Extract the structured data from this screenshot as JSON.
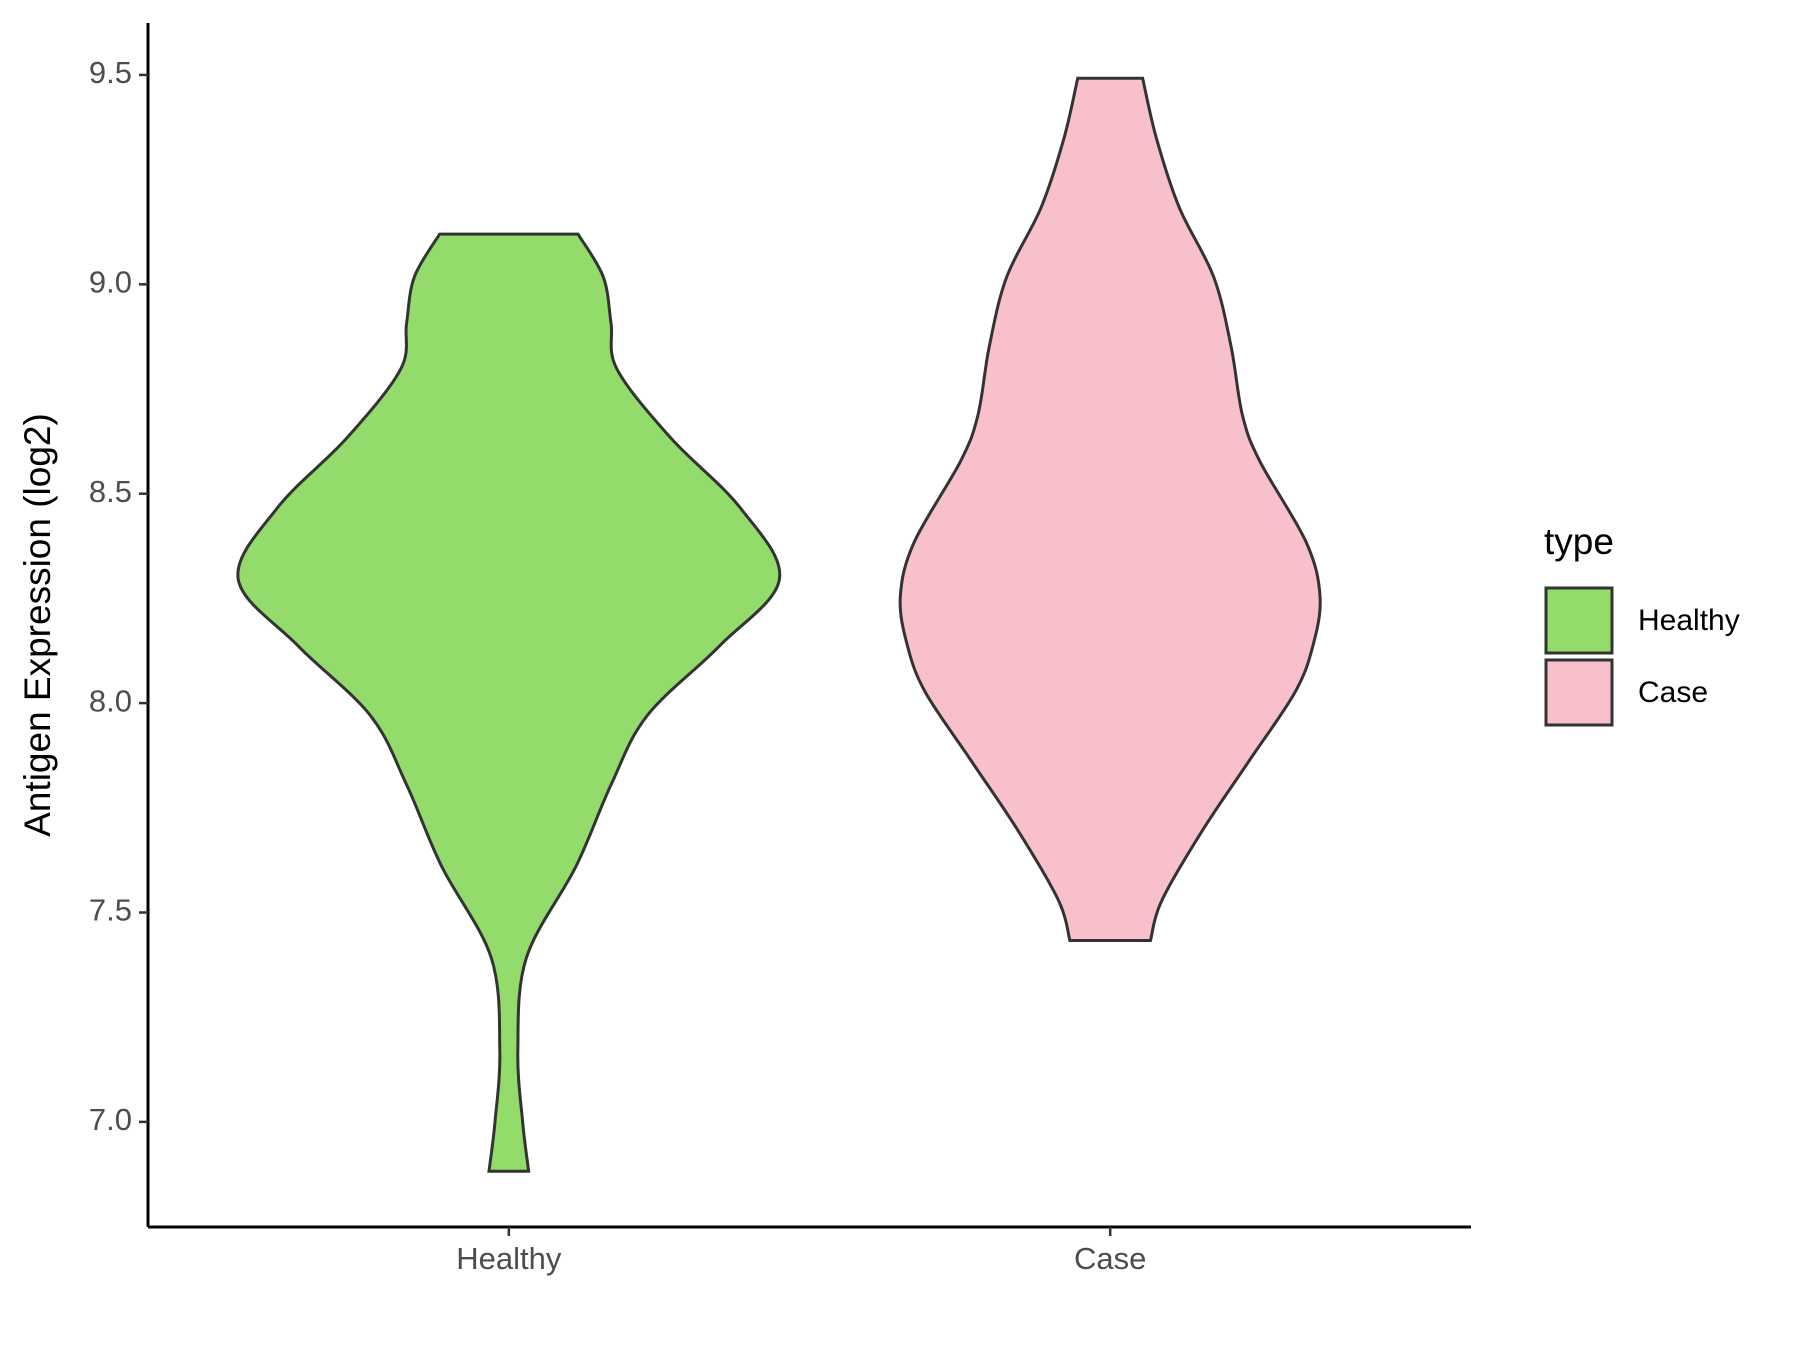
{
  "chart_data": {
    "type": "violin",
    "ylabel": "Antigen Expression (log2)",
    "categories": [
      "Healthy",
      "Case"
    ],
    "legend_title": "type",
    "ylim": [
      6.749,
      9.624
    ],
    "yticks": [
      {
        "value": 7,
        "label": "7.0"
      },
      7.5,
      {
        "value": 8,
        "label": "8.0"
      },
      8.5,
      {
        "value": 9,
        "label": "9.0"
      },
      9.5
    ],
    "series": [
      {
        "name": "Healthy",
        "color": "#93dc6b",
        "y": [
          6.882,
          7.0,
          7.171,
          7.391,
          7.611,
          7.805,
          7.97,
          8.136,
          8.296,
          8.466,
          8.632,
          8.797,
          8.907,
          9.018,
          9.12
        ],
        "width": [
          0.033,
          0.023,
          0.015,
          0.029,
          0.112,
          0.17,
          0.23,
          0.35,
          0.45,
          0.385,
          0.27,
          0.18,
          0.17,
          0.157,
          0.115
        ]
      },
      {
        "name": "Case",
        "color": "#f7c0cb",
        "y": [
          7.433,
          7.529,
          7.695,
          7.86,
          8.025,
          8.136,
          8.254,
          8.384,
          8.577,
          8.687,
          8.852,
          9.018,
          9.183,
          9.348,
          9.492
        ],
        "width": [
          0.067,
          0.086,
          0.153,
          0.23,
          0.307,
          0.337,
          0.349,
          0.326,
          0.249,
          0.22,
          0.201,
          0.172,
          0.115,
          0.077,
          0.054
        ]
      }
    ]
  }
}
